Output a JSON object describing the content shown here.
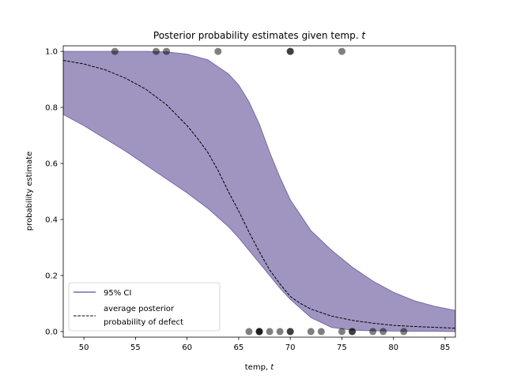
{
  "chart_data": {
    "type": "line",
    "title": "Posterior probability estimates given temp.",
    "title_var": "t",
    "xlabel": "temp,",
    "xlabel_var": "t",
    "ylabel": "probability estimate",
    "xlim": [
      48,
      86
    ],
    "ylim": [
      -0.02,
      1.02
    ],
    "x_ticks": [
      50,
      55,
      60,
      65,
      70,
      75,
      80,
      85
    ],
    "y_ticks": [
      0.0,
      0.2,
      0.4,
      0.6,
      0.8,
      1.0
    ],
    "grid": false,
    "legend_position": "lower-left",
    "series": [
      {
        "name": "95% CI",
        "kind": "band",
        "color": "#7a6aaa",
        "fill_color": "#a095c0",
        "x": [
          48,
          50,
          52,
          54,
          56,
          58,
          60,
          62,
          64,
          65,
          66,
          67,
          68,
          69,
          70,
          72,
          74,
          76,
          78,
          80,
          82,
          84,
          86
        ],
        "lower": [
          0.775,
          0.735,
          0.69,
          0.645,
          0.595,
          0.545,
          0.495,
          0.44,
          0.375,
          0.335,
          0.29,
          0.245,
          0.2,
          0.155,
          0.115,
          0.05,
          0.015,
          0.005,
          0.003,
          0.002,
          0.001,
          0.001,
          0.0
        ],
        "upper": [
          1.0,
          1.0,
          1.0,
          1.0,
          1.0,
          0.998,
          0.99,
          0.97,
          0.92,
          0.88,
          0.82,
          0.74,
          0.64,
          0.55,
          0.47,
          0.36,
          0.29,
          0.23,
          0.18,
          0.14,
          0.11,
          0.09,
          0.075
        ]
      },
      {
        "name": "average posterior probability of defect",
        "legend_lines": [
          "average posterior",
          "probability of defect"
        ],
        "kind": "line",
        "style": "dashed",
        "color": "#000000",
        "x": [
          48,
          50,
          52,
          54,
          56,
          58,
          60,
          61,
          62,
          63,
          64,
          65,
          66,
          67,
          68,
          69,
          70,
          71,
          72,
          74,
          76,
          78,
          80,
          82,
          84,
          86
        ],
        "y": [
          0.968,
          0.955,
          0.935,
          0.905,
          0.865,
          0.81,
          0.735,
          0.69,
          0.64,
          0.575,
          0.5,
          0.43,
          0.355,
          0.285,
          0.22,
          0.17,
          0.125,
          0.1,
          0.08,
          0.055,
          0.04,
          0.03,
          0.022,
          0.018,
          0.015,
          0.012
        ]
      },
      {
        "name": "observations",
        "kind": "scatter",
        "color": "#000000",
        "points": [
          {
            "x": 53,
            "y": 1
          },
          {
            "x": 57,
            "y": 1
          },
          {
            "x": 58,
            "y": 1
          },
          {
            "x": 63,
            "y": 1
          },
          {
            "x": 70,
            "y": 1
          },
          {
            "x": 70,
            "y": 1
          },
          {
            "x": 75,
            "y": 1
          },
          {
            "x": 66,
            "y": 0
          },
          {
            "x": 67,
            "y": 0
          },
          {
            "x": 67,
            "y": 0
          },
          {
            "x": 67,
            "y": 0
          },
          {
            "x": 68,
            "y": 0
          },
          {
            "x": 69,
            "y": 0
          },
          {
            "x": 70,
            "y": 0
          },
          {
            "x": 70,
            "y": 0
          },
          {
            "x": 72,
            "y": 0
          },
          {
            "x": 73,
            "y": 0
          },
          {
            "x": 75,
            "y": 0
          },
          {
            "x": 76,
            "y": 0
          },
          {
            "x": 76,
            "y": 0
          },
          {
            "x": 78,
            "y": 0
          },
          {
            "x": 79,
            "y": 0
          },
          {
            "x": 81,
            "y": 0
          }
        ]
      }
    ]
  }
}
